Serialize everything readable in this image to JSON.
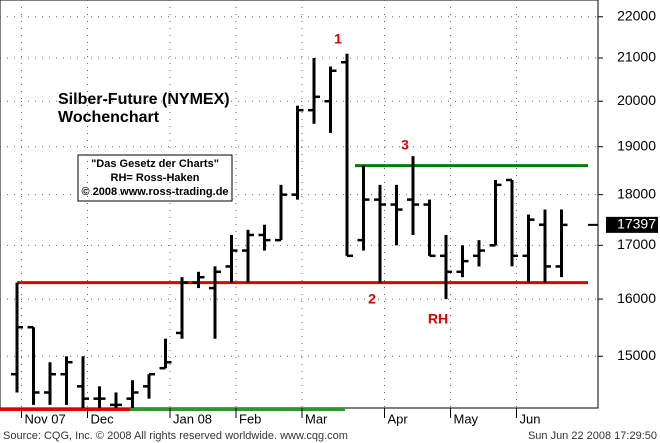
{
  "chart_data": {
    "type": "ohlc",
    "title": "Silber-Future (NYMEX)",
    "subtitle": "Wochenchart",
    "note_lines": [
      "\"Das Gesetz der Charts\"",
      "RH= Ross-Haken",
      "© 2008 www.ross-trading.de"
    ],
    "annotations": [
      "1",
      "2",
      "3",
      "RH"
    ],
    "source": "Source: CQG, Inc. © 2008 All rights reserved worldwide. www.cqg.com",
    "timestamp": "Sun Jun 22 2008 17:29:50",
    "categories": [
      null,
      "Nov 07",
      null,
      null,
      null,
      "Dec",
      null,
      null,
      null,
      null,
      "Jan 08",
      null,
      null,
      null,
      "Feb",
      null,
      null,
      null,
      "Mar",
      null,
      null,
      null,
      null,
      "Apr",
      null,
      null,
      null,
      "May",
      null,
      null,
      null,
      "Jun",
      null,
      null
    ],
    "open": [
      14700,
      15500,
      14400,
      14700,
      14500,
      14300,
      14200,
      14300,
      14500,
      14800,
      15400,
      16300,
      16200,
      16600,
      16900,
      17200,
      17100,
      18000,
      19800,
      20000,
      20900,
      17100,
      17900,
      17800,
      17900,
      17800,
      16800,
      16500,
      16800,
      17000,
      18300,
      16800,
      17400,
      16600
    ],
    "high": [
      16300,
      15500,
      14900,
      15000,
      15000,
      14500,
      14400,
      14600,
      14700,
      15300,
      16400,
      16500,
      16600,
      17200,
      17300,
      17400,
      18200,
      19900,
      21000,
      20800,
      21100,
      18600,
      18200,
      18200,
      18800,
      17900,
      17200,
      17000,
      17100,
      18300,
      18300,
      17600,
      17700,
      17700
    ],
    "low": [
      14400,
      14200,
      14200,
      14200,
      14150,
      14150,
      14150,
      14150,
      14300,
      14800,
      15300,
      16200,
      15300,
      16300,
      16300,
      16900,
      17100,
      17900,
      19500,
      19300,
      16800,
      16900,
      16300,
      17000,
      17200,
      16800,
      16000,
      16400,
      16600,
      17000,
      16600,
      16300,
      16300,
      16400
    ],
    "close": [
      15500,
      14400,
      14700,
      14900,
      14300,
      14300,
      14200,
      14400,
      14700,
      14900,
      16300,
      16400,
      16500,
      16900,
      17200,
      17100,
      18000,
      19800,
      20100,
      20700,
      16800,
      17900,
      17800,
      17700,
      17800,
      16800,
      16500,
      16700,
      16900,
      18200,
      16800,
      17500,
      16600,
      17397
    ],
    "color": "#000000",
    "last_price": 17397,
    "reference_lines": [
      {
        "value": 16300,
        "color": "#e00000"
      },
      {
        "value": 18600,
        "color": "#008000"
      }
    ],
    "ylim": [
      14150,
      22420
    ],
    "log_scale": true,
    "yticks": [
      15000,
      16000,
      17000,
      18000,
      19000,
      20000,
      21000,
      22000
    ],
    "grid": true
  }
}
